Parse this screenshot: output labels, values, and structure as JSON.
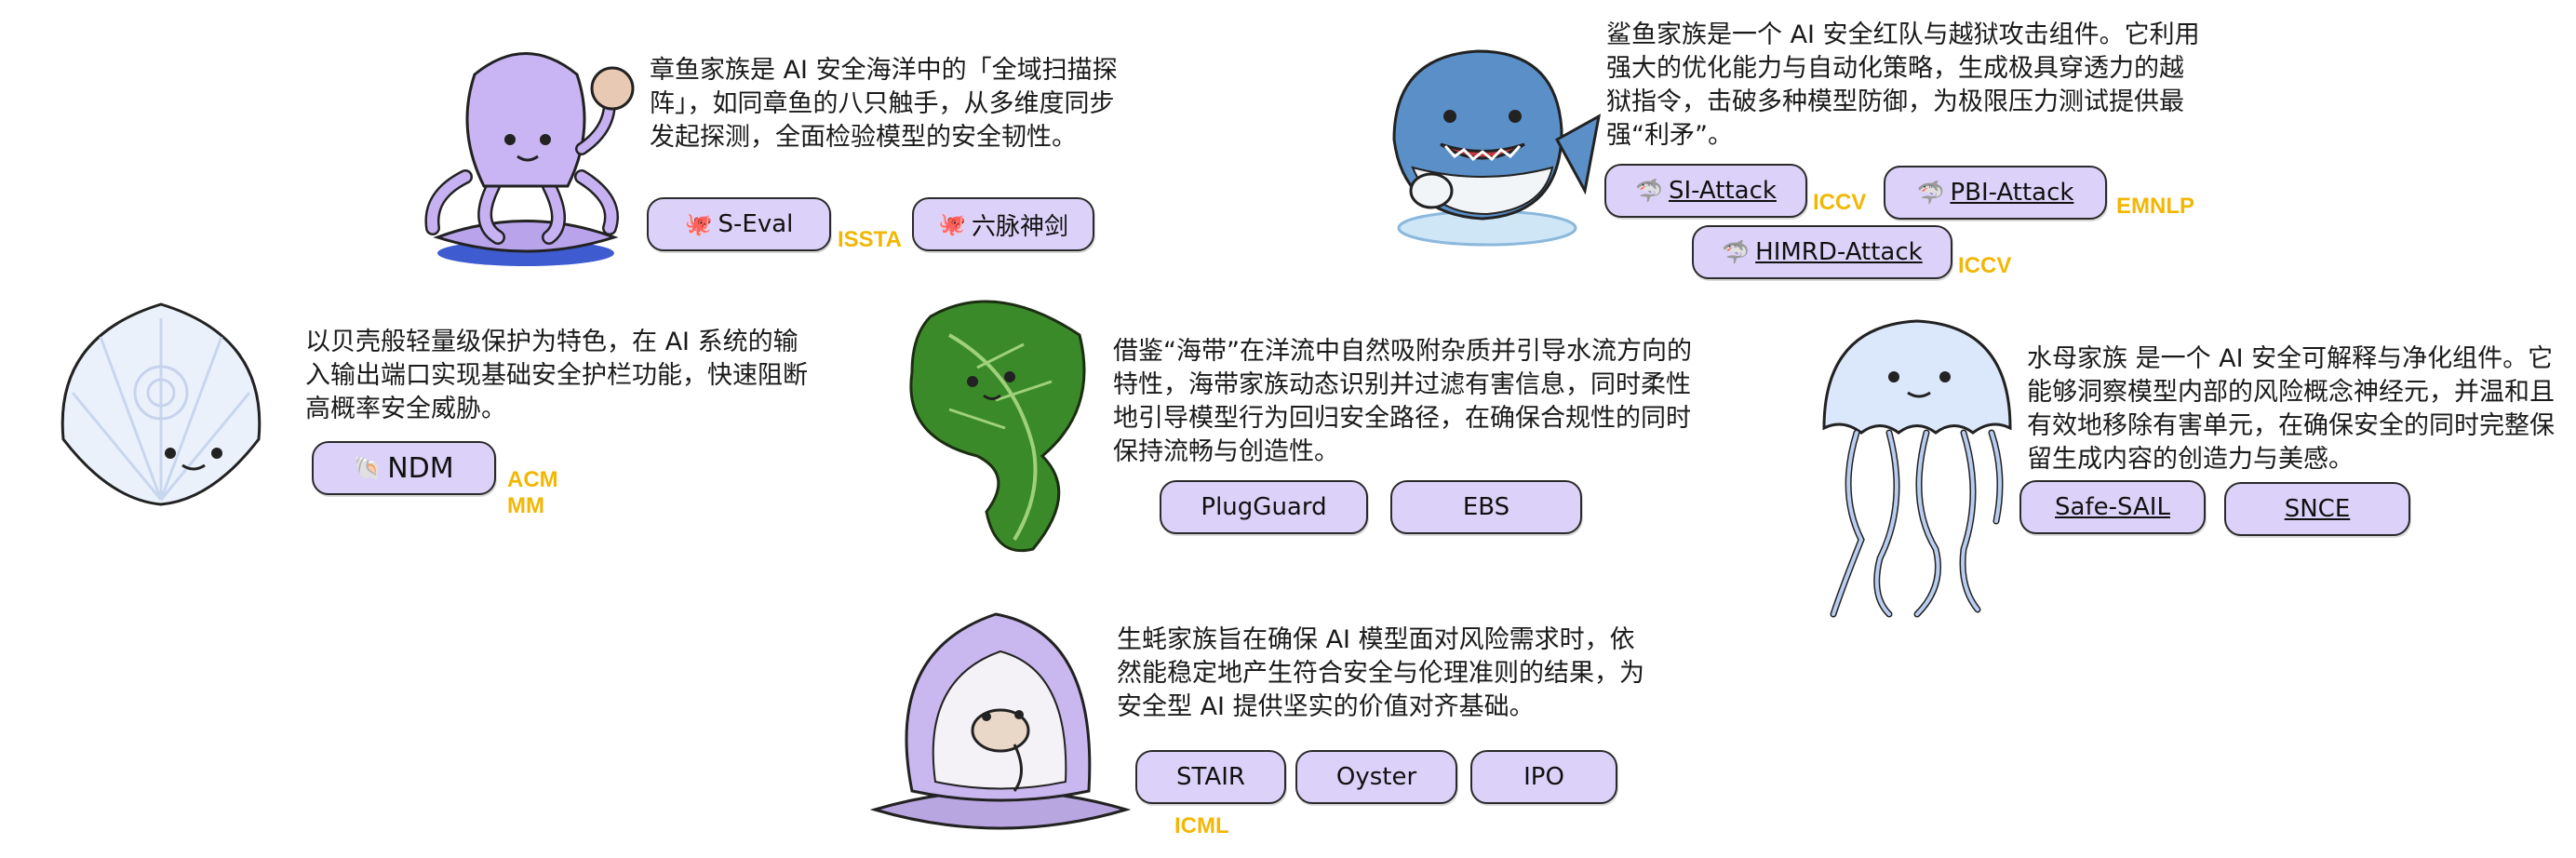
{
  "colors": {
    "pill_fill": "#dcd2f9",
    "pill_border": "#2a2a2a",
    "venue": "#f2b705"
  },
  "octopus": {
    "desc": "章鱼家族是 AI 安全海洋中的「全域扫描探阵」，如同章鱼的八只触手，从多维度同步发起探测，全面检验模型的安全韧性。",
    "tools": [
      {
        "label": "S-Eval",
        "icon": "octopus-icon"
      },
      {
        "label": "六脉神剑",
        "icon": "octopus-icon"
      }
    ],
    "venue": "ISSTA"
  },
  "shark": {
    "desc": "鲨鱼家族是一个 AI 安全红队与越狱攻击组件。它利用强大的优化能力与自动化策略，生成极具穿透力的越狱指令，击破多种模型防御，为极限压力测试提供最强“利矛”。",
    "tools": [
      {
        "label": "SI-Attack",
        "icon": "shark-icon",
        "venue": "ICCV"
      },
      {
        "label": "PBI-Attack",
        "icon": "shark-icon",
        "venue": "EMNLP"
      },
      {
        "label": "HIMRD-Attack",
        "icon": "shark-icon",
        "venue": "ICCV"
      }
    ]
  },
  "shell": {
    "desc": "以贝壳般轻量级保护为特色，在 AI 系统的输入输出端口实现基础安全护栏功能，快速阻断高概率安全威胁。",
    "tools": [
      {
        "label": "NDM",
        "icon": "shell-icon"
      }
    ],
    "venue": "ACM MM"
  },
  "seaweed": {
    "desc": "借鉴“海带”在洋流中自然吸附杂质并引导水流方向的特性，海带家族动态识别并过滤有害信息，同时柔性地引导模型行为回归安全路径，在确保合规性的同时保持流畅与创造性。",
    "tools": [
      {
        "label": "PlugGuard"
      },
      {
        "label": "EBS"
      }
    ]
  },
  "jellyfish": {
    "desc": "水母家族 是一个 AI 安全可解释与净化组件。它能够洞察模型内部的风险概念神经元，并温和且有效地移除有害单元，在确保安全的同时完整保留生成内容的创造力与美感。",
    "tools": [
      {
        "label": "Safe-SAIL"
      },
      {
        "label": "SNCE"
      }
    ]
  },
  "oyster": {
    "desc": "生蚝家族旨在确保 AI 模型面对风险需求时，依然能稳定地产生符合安全与伦理准则的结果，为安全型 AI 提供坚实的价值对齐基础。",
    "tools": [
      {
        "label": "STAIR"
      },
      {
        "label": "Oyster"
      },
      {
        "label": "IPO"
      }
    ],
    "venue": "ICML"
  }
}
